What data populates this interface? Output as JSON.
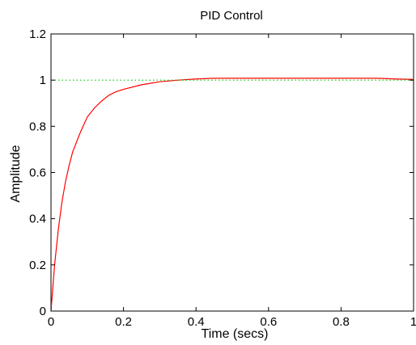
{
  "chart_data": {
    "type": "line",
    "title": "PID Control",
    "xlabel": "Time (secs)",
    "ylabel": "Amplitude",
    "xlim": [
      0,
      1
    ],
    "ylim": [
      0,
      1.2
    ],
    "xticks": [
      "0",
      "0.2",
      "0.4",
      "0.6",
      "0.8",
      "1"
    ],
    "yticks": [
      "0",
      "0.2",
      "0.4",
      "0.6",
      "0.8",
      "1",
      "1.2"
    ],
    "grid": false,
    "series": [
      {
        "color": "#ff0000",
        "style": "solid",
        "x": [
          0,
          0.01,
          0.02,
          0.03,
          0.04,
          0.05,
          0.06,
          0.08,
          0.1,
          0.12,
          0.14,
          0.16,
          0.18,
          0.2,
          0.25,
          0.3,
          0.35,
          0.4,
          0.45,
          0.5,
          0.6,
          0.7,
          0.8,
          0.9,
          0.95,
          1.0
        ],
        "y": [
          0,
          0.2,
          0.35,
          0.47,
          0.56,
          0.63,
          0.69,
          0.77,
          0.84,
          0.88,
          0.91,
          0.935,
          0.95,
          0.96,
          0.98,
          0.993,
          1.0,
          1.005,
          1.008,
          1.008,
          1.008,
          1.008,
          1.008,
          1.008,
          1.005,
          1.003
        ]
      },
      {
        "color": "#00cc00",
        "style": "dotted",
        "x": [
          0,
          1
        ],
        "y": [
          1,
          1
        ]
      }
    ]
  }
}
